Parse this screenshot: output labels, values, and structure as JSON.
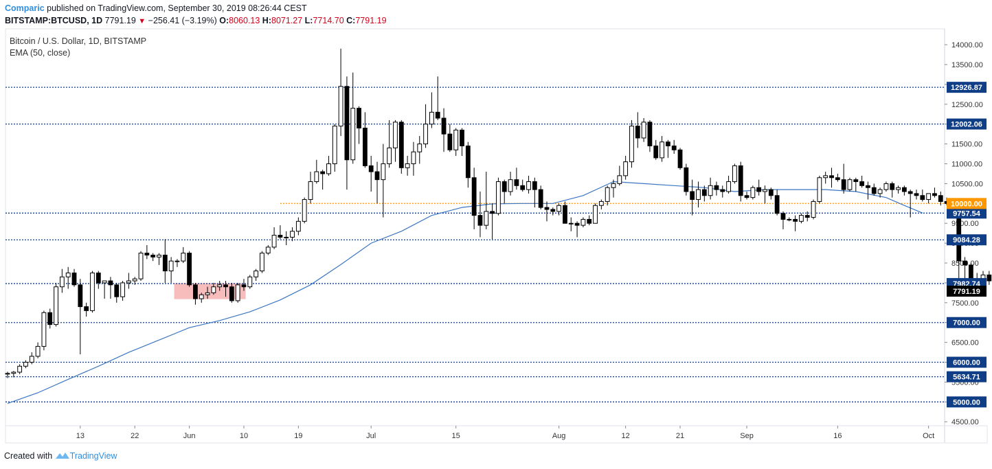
{
  "header": {
    "publisher": "Comparic",
    "published_text": "published on TradingView.com, September 30, 2019 08:26:44 CEST",
    "symbol": "BITSTAMP:BTCUSD, 1D",
    "last": "7791.19",
    "change": "−256.41 (−3.19%)",
    "o_label": "O:",
    "o": "8060.13",
    "h_label": "H:",
    "h": "8071.27",
    "l_label": "L:",
    "l": "7714.70",
    "c_label": "C:",
    "c": "7791.19"
  },
  "legend": {
    "series": "Bitcoin / U.S. Dollar, 1D, BITSTAMP",
    "indicator": "EMA (50, close)"
  },
  "footer": {
    "created_with": "Created with",
    "brand": "TradingView"
  },
  "colors": {
    "level_line": "#0c3e8c",
    "orange_line": "#ff9800",
    "ema_line": "#3b76c2",
    "highlight": "#f4a6a6",
    "badge_blue": "#0f3d86",
    "badge_orange": "#ff9800",
    "price_badge": "#000000"
  },
  "chart_data": {
    "type": "candlestick",
    "ylim": [
      4400,
      14400
    ],
    "y_ticks": [
      "4500.00",
      "5000.00",
      "5500.00",
      "6000.00",
      "6500.00",
      "7000.00",
      "7500.00",
      "8000.00",
      "8500.00",
      "9000.00",
      "9500.00",
      "10000.00",
      "10500.00",
      "11000.00",
      "11500.00",
      "12000.00",
      "12500.00",
      "13000.00",
      "13500.00",
      "14000.00"
    ],
    "x_ticks": [
      {
        "label": "13",
        "day": 13
      },
      {
        "label": "22",
        "day": 22
      },
      {
        "label": "Jun",
        "day": 31
      },
      {
        "label": "10",
        "day": 40
      },
      {
        "label": "19",
        "day": 49
      },
      {
        "label": "Jul",
        "day": 61
      },
      {
        "label": "15",
        "day": 75
      },
      {
        "label": "Aug",
        "day": 92
      },
      {
        "label": "12",
        "day": 103
      },
      {
        "label": "21",
        "day": 112
      },
      {
        "label": "Sep",
        "day": 123
      },
      {
        "label": "16",
        "day": 138
      },
      {
        "label": "Oct",
        "day": 153
      }
    ],
    "levels": [
      {
        "price": 12926.87,
        "label": "12926.87",
        "style": "blue"
      },
      {
        "price": 12002.06,
        "label": "12002.06",
        "style": "blue"
      },
      {
        "price": 9757.54,
        "label": "9757.54",
        "style": "blue"
      },
      {
        "price": 9084.28,
        "label": "9084.28",
        "style": "blue"
      },
      {
        "price": 7982.74,
        "label": "7982.74",
        "style": "blue"
      },
      {
        "price": 7000,
        "label": "7000.00",
        "style": "blue"
      },
      {
        "price": 6000,
        "label": "6000.00",
        "style": "blue"
      },
      {
        "price": 5634.71,
        "label": "5634.71",
        "style": "blue"
      },
      {
        "price": 5000,
        "label": "5000.00",
        "style": "blue"
      },
      {
        "price": 10000,
        "label": "10000.00",
        "style": "orange",
        "x_start_day": 46
      }
    ],
    "last_price": {
      "price": 7791.19,
      "label": "7791.19"
    },
    "highlight_box": {
      "day_start": 28.5,
      "day_end": 40.3,
      "price_low": 7590,
      "price_high": 7990
    },
    "first_day": 1,
    "candles": [
      [
        5700,
        5760,
        5600,
        5720
      ],
      [
        5720,
        5780,
        5620,
        5750
      ],
      [
        5750,
        5950,
        5700,
        5900
      ],
      [
        5900,
        6050,
        5850,
        6000
      ],
      [
        6000,
        6250,
        5950,
        6150
      ],
      [
        6150,
        6500,
        6100,
        6400
      ],
      [
        6400,
        7300,
        6300,
        7250
      ],
      [
        7250,
        7350,
        6850,
        6950
      ],
      [
        6950,
        8000,
        6900,
        7900
      ],
      [
        7900,
        8350,
        7750,
        8150
      ],
      [
        8150,
        8400,
        7850,
        8250
      ],
      [
        8250,
        8350,
        7900,
        7950
      ],
      [
        7950,
        8100,
        6200,
        7400
      ],
      [
        7400,
        7500,
        7150,
        7300
      ],
      [
        7300,
        8300,
        7250,
        8250
      ],
      [
        8250,
        8300,
        7850,
        8000
      ],
      [
        8000,
        8050,
        7600,
        8050
      ],
      [
        8050,
        8150,
        7600,
        7950
      ],
      [
        7950,
        8000,
        7500,
        7650
      ],
      [
        7650,
        8050,
        7550,
        8000
      ],
      [
        8000,
        8250,
        7850,
        8050
      ],
      [
        8050,
        8150,
        7950,
        8100
      ],
      [
        8100,
        8800,
        8050,
        8750
      ],
      [
        8750,
        8950,
        8600,
        8700
      ],
      [
        8700,
        8750,
        8550,
        8650
      ],
      [
        8650,
        8750,
        8450,
        8700
      ],
      [
        8700,
        9100,
        8000,
        8300
      ],
      [
        8300,
        8650,
        8000,
        8550
      ],
      [
        8550,
        8600,
        8400,
        8550
      ],
      [
        8550,
        8900,
        8500,
        8750
      ],
      [
        8750,
        8800,
        7900,
        7950
      ],
      [
        7950,
        8000,
        7450,
        7600
      ],
      [
        7600,
        7750,
        7500,
        7700
      ],
      [
        7700,
        7900,
        7600,
        7750
      ],
      [
        7750,
        8000,
        7700,
        7900
      ],
      [
        7900,
        8050,
        7800,
        7950
      ],
      [
        7950,
        8050,
        7650,
        7900
      ],
      [
        7900,
        8000,
        7500,
        7550
      ],
      [
        7550,
        8000,
        7500,
        7950
      ],
      [
        7950,
        8100,
        7800,
        7900
      ],
      [
        7900,
        8200,
        7850,
        8150
      ],
      [
        8150,
        8350,
        8050,
        8300
      ],
      [
        8300,
        8800,
        8250,
        8750
      ],
      [
        8750,
        8950,
        8700,
        8900
      ],
      [
        8900,
        9400,
        8850,
        9200
      ],
      [
        9200,
        9450,
        9100,
        9150
      ],
      [
        9150,
        9300,
        8950,
        9150
      ],
      [
        9150,
        9400,
        9050,
        9300
      ],
      [
        9300,
        9650,
        9200,
        9550
      ],
      [
        9550,
        10150,
        9500,
        10100
      ],
      [
        10100,
        10800,
        10000,
        10550
      ],
      [
        10550,
        11100,
        10500,
        10800
      ],
      [
        10800,
        10850,
        10350,
        10750
      ],
      [
        10750,
        11200,
        10700,
        11000
      ],
      [
        11000,
        12000,
        10800,
        11950
      ],
      [
        11950,
        13900,
        11700,
        12950
      ],
      [
        12950,
        13200,
        10350,
        11100
      ],
      [
        11100,
        13300,
        11000,
        12400
      ],
      [
        12400,
        12450,
        11500,
        11900
      ],
      [
        11900,
        12300,
        10900,
        10950
      ],
      [
        10950,
        11200,
        10300,
        10800
      ],
      [
        10800,
        11050,
        10000,
        10600
      ],
      [
        10600,
        11500,
        9650,
        11000
      ],
      [
        11000,
        12100,
        10900,
        11400
      ],
      [
        11400,
        12100,
        11050,
        12050
      ],
      [
        12050,
        12100,
        10750,
        10900
      ],
      [
        10900,
        11200,
        10700,
        11000
      ],
      [
        11000,
        11550,
        10700,
        11300
      ],
      [
        11300,
        11700,
        11000,
        11500
      ],
      [
        11500,
        12500,
        11400,
        12000
      ],
      [
        12000,
        12800,
        11900,
        12300
      ],
      [
        12300,
        13200,
        12100,
        12150
      ],
      [
        12150,
        12400,
        11300,
        11750
      ],
      [
        11750,
        12000,
        11300,
        11350
      ],
      [
        11350,
        11900,
        11200,
        11850
      ],
      [
        11850,
        11900,
        11200,
        11450
      ],
      [
        11450,
        11550,
        10400,
        10650
      ],
      [
        10650,
        10900,
        9350,
        9700
      ],
      [
        9700,
        10300,
        9150,
        9450
      ],
      [
        9450,
        10800,
        9350,
        9800
      ],
      [
        9800,
        10000,
        9100,
        9750
      ],
      [
        9750,
        10650,
        9700,
        10550
      ],
      [
        10550,
        10600,
        10000,
        10300
      ],
      [
        10300,
        10800,
        10200,
        10600
      ],
      [
        10600,
        10900,
        10350,
        10450
      ],
      [
        10450,
        10600,
        10300,
        10350
      ],
      [
        10350,
        10700,
        10250,
        10550
      ],
      [
        10550,
        10650,
        9900,
        10350
      ],
      [
        10350,
        10450,
        9850,
        9900
      ],
      [
        9900,
        10050,
        9550,
        9850
      ],
      [
        9850,
        9900,
        9700,
        9800
      ],
      [
        9800,
        10000,
        9700,
        9950
      ],
      [
        9950,
        10050,
        9500,
        9500
      ],
      [
        9500,
        9650,
        9300,
        9500
      ],
      [
        9500,
        9550,
        9150,
        9450
      ],
      [
        9450,
        9650,
        9400,
        9600
      ],
      [
        9600,
        9700,
        9450,
        9500
      ],
      [
        9500,
        10000,
        9500,
        9950
      ],
      [
        9950,
        10100,
        9850,
        10050
      ],
      [
        10050,
        10450,
        9950,
        10400
      ],
      [
        10400,
        10600,
        10150,
        10500
      ],
      [
        10500,
        10950,
        10450,
        10700
      ],
      [
        10700,
        11200,
        10600,
        11050
      ],
      [
        11050,
        12100,
        10900,
        11950
      ],
      [
        11950,
        12300,
        11400,
        11650
      ],
      [
        11650,
        12150,
        11550,
        12050
      ],
      [
        12050,
        12100,
        11300,
        11450
      ],
      [
        11450,
        11600,
        11100,
        11150
      ],
      [
        11150,
        11700,
        11050,
        11550
      ],
      [
        11550,
        11600,
        11150,
        11450
      ],
      [
        11450,
        11600,
        11250,
        11350
      ],
      [
        11350,
        11400,
        10850,
        10900
      ],
      [
        10900,
        11000,
        10200,
        10300
      ],
      [
        10300,
        10600,
        9700,
        10100
      ],
      [
        10100,
        10550,
        9900,
        10350
      ],
      [
        10350,
        10450,
        10050,
        10200
      ],
      [
        10200,
        10650,
        10100,
        10450
      ],
      [
        10450,
        10550,
        10200,
        10350
      ],
      [
        10350,
        10450,
        10150,
        10300
      ],
      [
        10300,
        10700,
        10250,
        10550
      ],
      [
        10550,
        11000,
        10500,
        10950
      ],
      [
        10950,
        11050,
        10050,
        10200
      ],
      [
        10200,
        10300,
        10100,
        10150
      ],
      [
        10150,
        10450,
        10100,
        10400
      ],
      [
        10400,
        10600,
        10200,
        10300
      ],
      [
        10300,
        10450,
        10000,
        10350
      ],
      [
        10350,
        10400,
        10100,
        10200
      ],
      [
        10200,
        10350,
        9700,
        9750
      ],
      [
        9750,
        9800,
        9350,
        9600
      ],
      [
        9600,
        9650,
        9550,
        9600
      ],
      [
        9600,
        9700,
        9300,
        9550
      ],
      [
        9550,
        9750,
        9500,
        9700
      ],
      [
        9700,
        9800,
        9550,
        9650
      ],
      [
        9650,
        10100,
        9600,
        10050
      ],
      [
        10050,
        10700,
        10000,
        10650
      ],
      [
        10650,
        10800,
        10500,
        10700
      ],
      [
        10700,
        10900,
        10400,
        10650
      ],
      [
        10650,
        10750,
        10550,
        10600
      ],
      [
        10600,
        11000,
        10250,
        10350
      ],
      [
        10350,
        10650,
        10300,
        10600
      ],
      [
        10600,
        10650,
        10300,
        10550
      ],
      [
        10550,
        10700,
        10400,
        10450
      ],
      [
        10450,
        10550,
        10100,
        10400
      ],
      [
        10400,
        10500,
        10200,
        10250
      ],
      [
        10250,
        10400,
        10150,
        10350
      ],
      [
        10350,
        10550,
        10300,
        10500
      ],
      [
        10500,
        10550,
        10150,
        10350
      ],
      [
        10350,
        10450,
        10250,
        10400
      ],
      [
        10400,
        10450,
        10200,
        10300
      ],
      [
        10300,
        10350,
        9650,
        10250
      ],
      [
        10250,
        10350,
        10100,
        10200
      ],
      [
        10200,
        10350,
        10050,
        10100
      ],
      [
        10100,
        10250,
        10000,
        10250
      ],
      [
        10250,
        10400,
        10150,
        10200
      ],
      [
        10200,
        10300,
        9950,
        10050
      ],
      [
        10050,
        10150,
        9950,
        10000
      ],
      [
        10000,
        10050,
        9700,
        9700
      ],
      [
        9700,
        9750,
        7950,
        8550
      ],
      [
        8550,
        8650,
        8100,
        8450
      ],
      [
        8450,
        8500,
        7750,
        7900
      ],
      [
        7900,
        8250,
        7800,
        8050
      ],
      [
        8050,
        8300,
        7900,
        8200
      ],
      [
        8200,
        8300,
        7950,
        8050
      ],
      [
        8060.13,
        8071.27,
        7714.7,
        7791.19
      ]
    ],
    "ema": [
      [
        1,
        4960
      ],
      [
        6,
        5230
      ],
      [
        11,
        5570
      ],
      [
        16,
        5900
      ],
      [
        21,
        6250
      ],
      [
        26,
        6560
      ],
      [
        31,
        6870
      ],
      [
        36,
        7050
      ],
      [
        41,
        7270
      ],
      [
        46,
        7570
      ],
      [
        51,
        7950
      ],
      [
        56,
        8460
      ],
      [
        61,
        9000
      ],
      [
        66,
        9300
      ],
      [
        71,
        9700
      ],
      [
        76,
        9900
      ],
      [
        81,
        9990
      ],
      [
        86,
        10000
      ],
      [
        91,
        10000
      ],
      [
        96,
        10200
      ],
      [
        101,
        10550
      ],
      [
        106,
        10500
      ],
      [
        111,
        10450
      ],
      [
        116,
        10400
      ],
      [
        121,
        10300
      ],
      [
        126,
        10350
      ],
      [
        131,
        10350
      ],
      [
        136,
        10350
      ],
      [
        141,
        10300
      ],
      [
        146,
        10150
      ],
      [
        149,
        9950
      ],
      [
        152,
        9760
      ]
    ]
  }
}
